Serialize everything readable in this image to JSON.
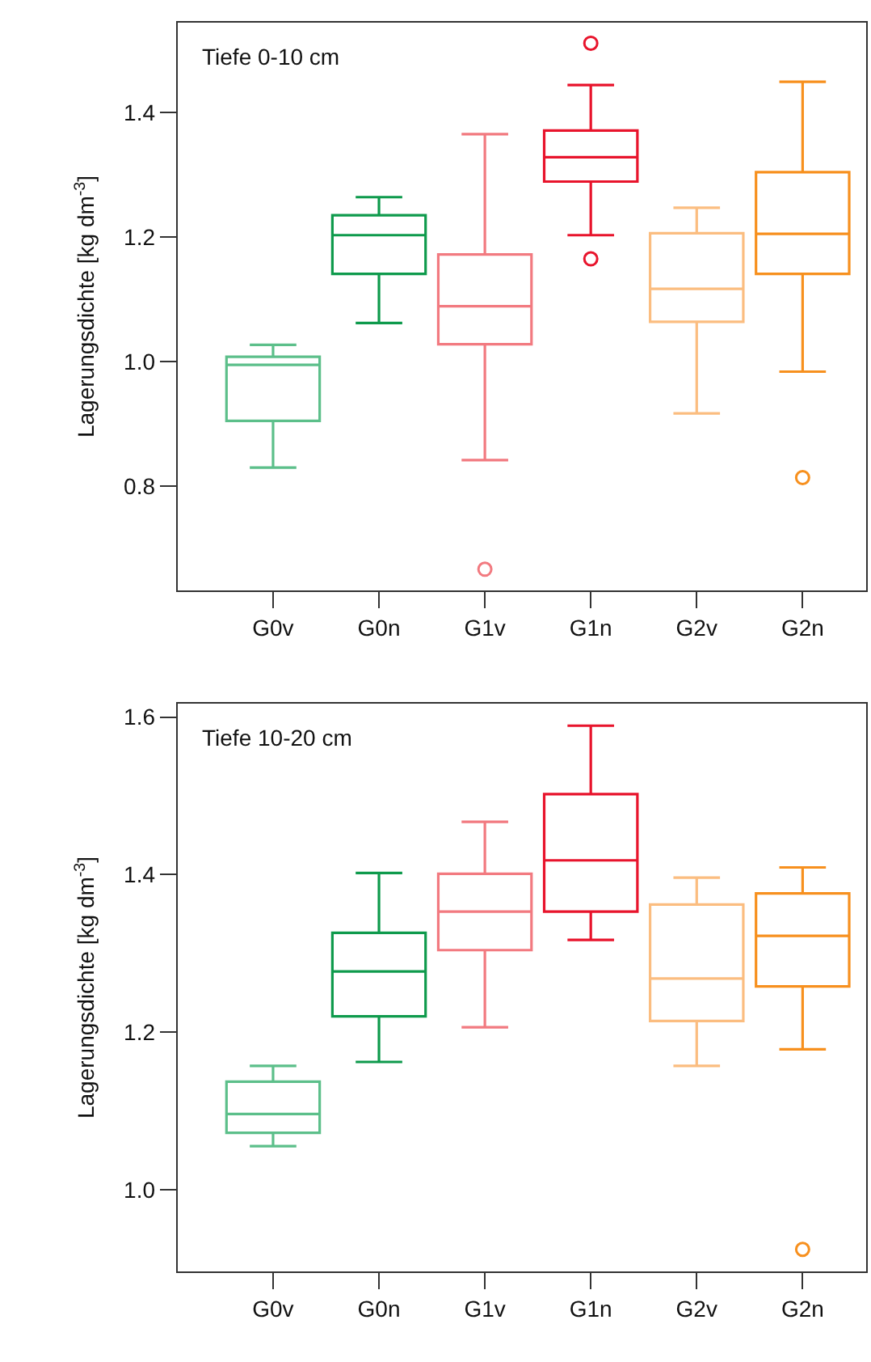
{
  "chart_data": [
    {
      "type": "box",
      "ylabel": "Lagerungsdichte [kg dm$^{-3}$]",
      "annotations": [
        "Tiefe 0-10 cm"
      ],
      "categories": [
        "G0v",
        "G0n",
        "G1v",
        "G1n",
        "G2v",
        "G2n"
      ],
      "colors": [
        "#5cbf8a",
        "#0e9a4c",
        "#f27a80",
        "#e8142c",
        "#fbbd80",
        "#f7901e"
      ],
      "boxes": [
        {
          "low": 0.83,
          "q1": 0.905,
          "median": 0.995,
          "q3": 1.008,
          "high": 1.027
        },
        {
          "low": 1.062,
          "q1": 1.141,
          "median": 1.203,
          "q3": 1.235,
          "high": 1.264
        },
        {
          "low": 0.842,
          "q1": 1.028,
          "median": 1.089,
          "q3": 1.172,
          "high": 1.365,
          "outliers": [
            0.667
          ]
        },
        {
          "low": 1.203,
          "q1": 1.289,
          "median": 1.328,
          "q3": 1.371,
          "high": 1.444,
          "outliers": [
            1.511,
            1.165
          ]
        },
        {
          "low": 0.917,
          "q1": 1.064,
          "median": 1.117,
          "q3": 1.206,
          "high": 1.247
        },
        {
          "low": 0.984,
          "q1": 1.141,
          "median": 1.205,
          "q3": 1.304,
          "high": 1.449,
          "outliers": [
            0.814
          ]
        }
      ],
      "ylim": [
        0.633,
        1.544
      ],
      "yticks": [
        0.8,
        {
          "value": 1,
          "label": "1.0"
        },
        1.2,
        1.4
      ]
    },
    {
      "type": "box",
      "ylabel": "Lagerungsdichte [kg dm$^{-3}$]",
      "annotations": [
        "Tiefe 10-20 cm"
      ],
      "categories": [
        "G0v",
        "G0n",
        "G1v",
        "G1n",
        "G2v",
        "G2n"
      ],
      "colors": [
        "#5cbf8a",
        "#0e9a4c",
        "#f27a80",
        "#e8142c",
        "#fbbd80",
        "#f7901e"
      ],
      "boxes": [
        {
          "low": 1.055,
          "q1": 1.072,
          "median": 1.096,
          "q3": 1.137,
          "high": 1.157
        },
        {
          "low": 1.162,
          "q1": 1.22,
          "median": 1.277,
          "q3": 1.326,
          "high": 1.402
        },
        {
          "low": 1.206,
          "q1": 1.304,
          "median": 1.353,
          "q3": 1.401,
          "high": 1.467
        },
        {
          "low": 1.317,
          "q1": 1.353,
          "median": 1.418,
          "q3": 1.502,
          "high": 1.589
        },
        {
          "low": 1.157,
          "q1": 1.214,
          "median": 1.268,
          "q3": 1.362,
          "high": 1.396
        },
        {
          "low": 1.178,
          "q1": 1.258,
          "median": 1.322,
          "q3": 1.376,
          "high": 1.409,
          "outliers": [
            0.924
          ]
        }
      ],
      "ylim": [
        0.896,
        1.617
      ],
      "yticks": [
        {
          "value": 1,
          "label": "1.0"
        },
        1.2,
        1.4,
        1.6
      ]
    }
  ]
}
